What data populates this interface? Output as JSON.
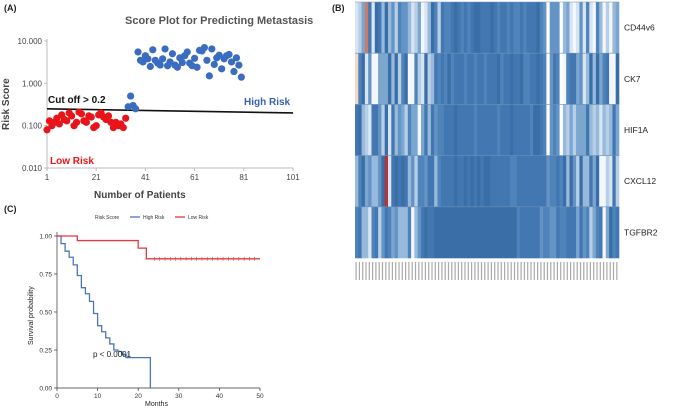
{
  "panels": {
    "a_label": "(A)",
    "b_label": "(B)",
    "c_label": "(C)"
  },
  "chart_data": [
    {
      "type": "scatter",
      "panel": "A",
      "title": "Score Plot for Predicting Metastasis",
      "xlabel": "Number of Patients",
      "ylabel": "Risk Score",
      "x_ticks": [
        "1",
        "21",
        "41",
        "61",
        "81",
        "101"
      ],
      "xlim": [
        1,
        101
      ],
      "y_scale": "log",
      "y_ticks": [
        "0.010",
        "0.100",
        "1.000",
        "10.000"
      ],
      "ylim": [
        0.01,
        10
      ],
      "cutoff_label": "Cut off > 0.2",
      "cutoff_line": {
        "x": [
          1,
          101
        ],
        "y": [
          0.25,
          0.2
        ]
      },
      "series": [
        {
          "name": "Low Risk",
          "color": "#e8141a",
          "x": [
            1,
            2,
            3,
            4,
            5,
            6,
            7,
            8,
            9,
            10,
            11,
            12,
            13,
            14,
            15,
            16,
            17,
            18,
            19,
            20,
            21,
            22,
            23,
            24,
            25,
            26,
            27,
            28,
            29,
            30,
            31,
            32,
            33
          ],
          "y": [
            0.08,
            0.13,
            0.1,
            0.12,
            0.15,
            0.11,
            0.18,
            0.14,
            0.13,
            0.2,
            0.17,
            0.1,
            0.12,
            0.21,
            0.19,
            0.13,
            0.12,
            0.17,
            0.16,
            0.09,
            0.1,
            0.18,
            0.2,
            0.16,
            0.14,
            0.17,
            0.12,
            0.09,
            0.12,
            0.1,
            0.11,
            0.09,
            0.15
          ]
        },
        {
          "name": "High Risk",
          "color": "#3a6cc0",
          "x": [
            34,
            35,
            36,
            37,
            38,
            39,
            40,
            41,
            42,
            43,
            44,
            45,
            46,
            47,
            48,
            49,
            50,
            51,
            52,
            53,
            54,
            55,
            56,
            57,
            58,
            59,
            60,
            61,
            62,
            63,
            64,
            65,
            66,
            67,
            68,
            69,
            70,
            71,
            72,
            73,
            74,
            75,
            76,
            77,
            78,
            79,
            80
          ],
          "y": [
            0.28,
            0.5,
            0.3,
            0.25,
            5.5,
            3.5,
            3.2,
            4.5,
            3.8,
            2.5,
            6.2,
            3.5,
            3.0,
            2.7,
            3.8,
            6.5,
            2.6,
            3.2,
            5.0,
            2.7,
            2.4,
            4.0,
            3.1,
            4.5,
            5.5,
            3.0,
            2.6,
            3.9,
            2.4,
            6.0,
            5.8,
            7.0,
            3.5,
            1.5,
            6.5,
            2.8,
            4.0,
            4.6,
            2.2,
            3.8,
            4.5,
            4.8,
            3.2,
            1.9,
            4.0,
            2.7,
            1.4
          ]
        }
      ],
      "annotations": {
        "high_risk": "High Risk",
        "low_risk": "Low Risk"
      }
    },
    {
      "type": "heatmap",
      "panel": "B",
      "rows": [
        "CD44v6",
        "CK7",
        "HIF1A",
        "CXCL12",
        "TGFBR2"
      ],
      "n_columns": 80
    },
    {
      "type": "line",
      "panel": "C",
      "legend_title": "Risk Score",
      "xlabel": "Months",
      "ylabel": "Survival probability",
      "xlim": [
        0,
        50
      ],
      "ylim": [
        0,
        1
      ],
      "x_ticks": [
        "0",
        "10",
        "20",
        "30",
        "40",
        "50"
      ],
      "y_ticks": [
        "0.00",
        "0.25",
        "0.50",
        "0.75",
        "1.00"
      ],
      "pvalue": "p < 0.0001",
      "series": [
        {
          "name": "High Risk",
          "color": "#4a78b5",
          "x": [
            0,
            1,
            2,
            3,
            4,
            5,
            6,
            7,
            8,
            9,
            10,
            11,
            12,
            13,
            14,
            15,
            16,
            17,
            18,
            23
          ],
          "y": [
            1.0,
            0.95,
            0.9,
            0.86,
            0.81,
            0.74,
            0.66,
            0.62,
            0.57,
            0.49,
            0.41,
            0.37,
            0.33,
            0.29,
            0.25,
            0.24,
            0.22,
            0.2,
            0.2,
            0.0
          ]
        },
        {
          "name": "Low Risk",
          "color": "#e0393f",
          "x": [
            0,
            5,
            20,
            22,
            50
          ],
          "y": [
            1.0,
            0.97,
            0.92,
            0.85,
            0.85
          ]
        }
      ]
    }
  ]
}
